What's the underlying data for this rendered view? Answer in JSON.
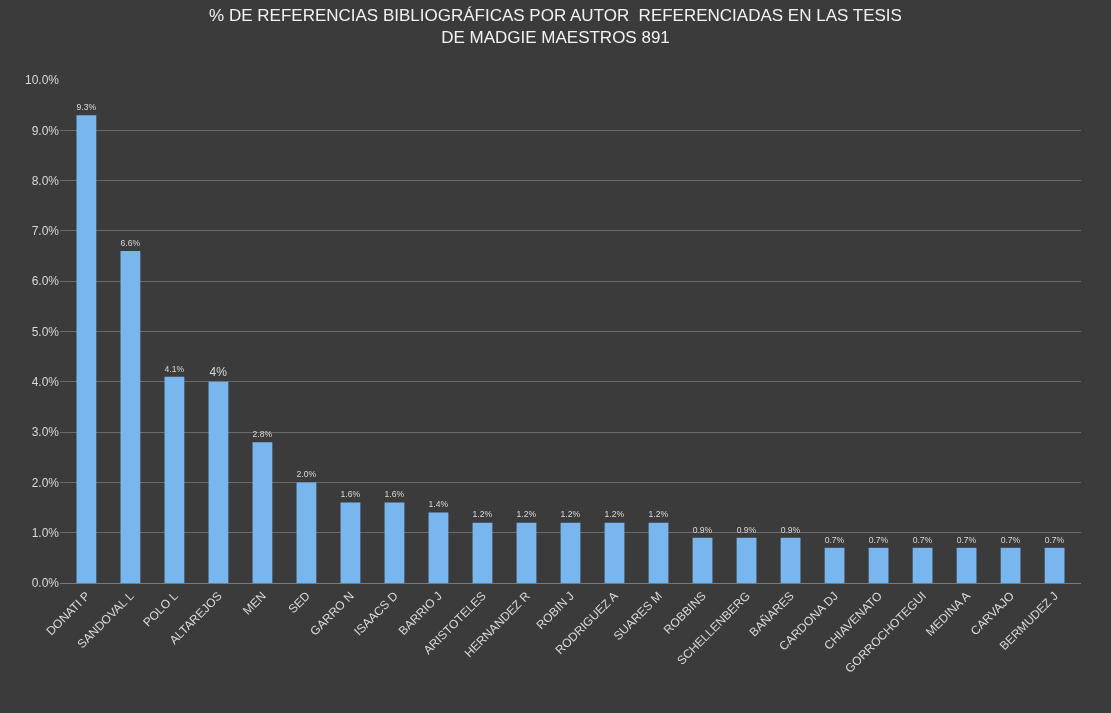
{
  "chart_data": {
    "type": "bar",
    "title": "% DE REFERENCIAS BIBLIOGRÁFICAS POR AUTOR  REFERENCIADAS EN LAS TESIS\nDE MADGIE MAESTROS 891",
    "categories": [
      "DONATI P",
      "SANDOVAL L",
      "POLO L",
      "ALTAREJOS",
      "MEN",
      "SED",
      "GARRO N",
      "ISAACS D",
      "BARRIO J",
      "ARISTOTELES",
      "HERNANDEZ R",
      "ROBIN J",
      "RODRIGUEZ A",
      "SUARES M",
      "ROBBINS",
      "SCHELLENBERG",
      "BAÑARES",
      "CARDONA DJ",
      "CHIAVENATO",
      "GORROCHOTEGUI",
      "MEDINA A",
      "CARVAJO",
      "BERMUDEZ J"
    ],
    "values": [
      9.3,
      6.6,
      4.1,
      4.0,
      2.8,
      2.0,
      1.6,
      1.6,
      1.4,
      1.2,
      1.2,
      1.2,
      1.2,
      1.2,
      0.9,
      0.9,
      0.9,
      0.7,
      0.7,
      0.7,
      0.7,
      0.7,
      0.7
    ],
    "value_labels": [
      "9.3%",
      "6.6%",
      "4.1%",
      "4%",
      "2.8%",
      "2.0%",
      "1.6%",
      "1.6%",
      "1.4%",
      "1.2%",
      "1.2%",
      "1.2%",
      "1.2%",
      "1.2%",
      "0.9%",
      "0.9%",
      "0.9%",
      "0.7%",
      "0.7%",
      "0.7%",
      "0.7%",
      "0.7%",
      "0.7%"
    ],
    "color": "#79b6ee",
    "ylim": [
      0,
      10
    ],
    "yticks": [
      {
        "value": 0,
        "label": "0.0%"
      },
      {
        "value": 1,
        "label": "1.0%"
      },
      {
        "value": 2,
        "label": "2.0%"
      },
      {
        "value": 3,
        "label": "3.0%"
      },
      {
        "value": 4,
        "label": "4.0%"
      },
      {
        "value": 5,
        "label": "5.0%"
      },
      {
        "value": 6,
        "label": "6.0%"
      },
      {
        "value": 7,
        "label": "7.0%"
      },
      {
        "value": 8,
        "label": "8.0%"
      },
      {
        "value": 9,
        "label": "9.0%"
      },
      {
        "value": 10,
        "label": "10.0%"
      }
    ],
    "grid": "y",
    "legend": false
  }
}
